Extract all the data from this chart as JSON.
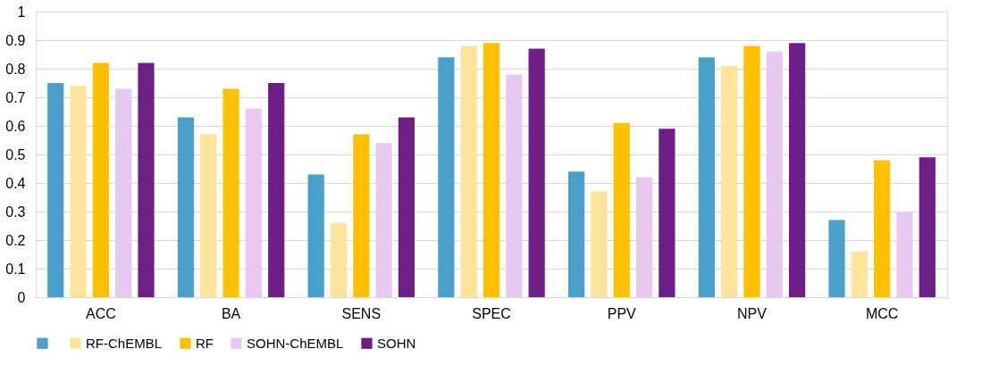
{
  "chart_data": {
    "type": "bar",
    "categories": [
      "ACC",
      "BA",
      "SENS",
      "SPEC",
      "PPV",
      "NPV",
      "MCC"
    ],
    "series": [
      {
        "color": "#4a9fcb",
        "values": [
          0.75,
          0.63,
          0.43,
          0.84,
          0.44,
          0.84,
          0.27
        ]
      },
      {
        "name": "RF-ChEMBL",
        "color": "#fde49a",
        "values": [
          0.74,
          0.57,
          0.26,
          0.88,
          0.37,
          0.81,
          0.16
        ]
      },
      {
        "name": "RF",
        "color": "#ffc000",
        "values": [
          0.82,
          0.73,
          0.57,
          0.89,
          0.61,
          0.88,
          0.48
        ]
      },
      {
        "name": "SOHN-ChEMBL",
        "color": "#e6c8f0",
        "values": [
          0.73,
          0.66,
          0.54,
          0.78,
          0.42,
          0.86,
          0.3
        ]
      },
      {
        "name": "SOHN",
        "color": "#6e1f87",
        "values": [
          0.82,
          0.75,
          0.63,
          0.87,
          0.59,
          0.89,
          0.49
        ]
      }
    ],
    "ylim": [
      0,
      1
    ],
    "yticks": [
      0,
      0.1,
      0.2,
      0.3,
      0.4,
      0.5,
      0.6,
      0.7,
      0.8,
      0.9,
      1
    ],
    "grid": "y",
    "legend": "bottom"
  }
}
